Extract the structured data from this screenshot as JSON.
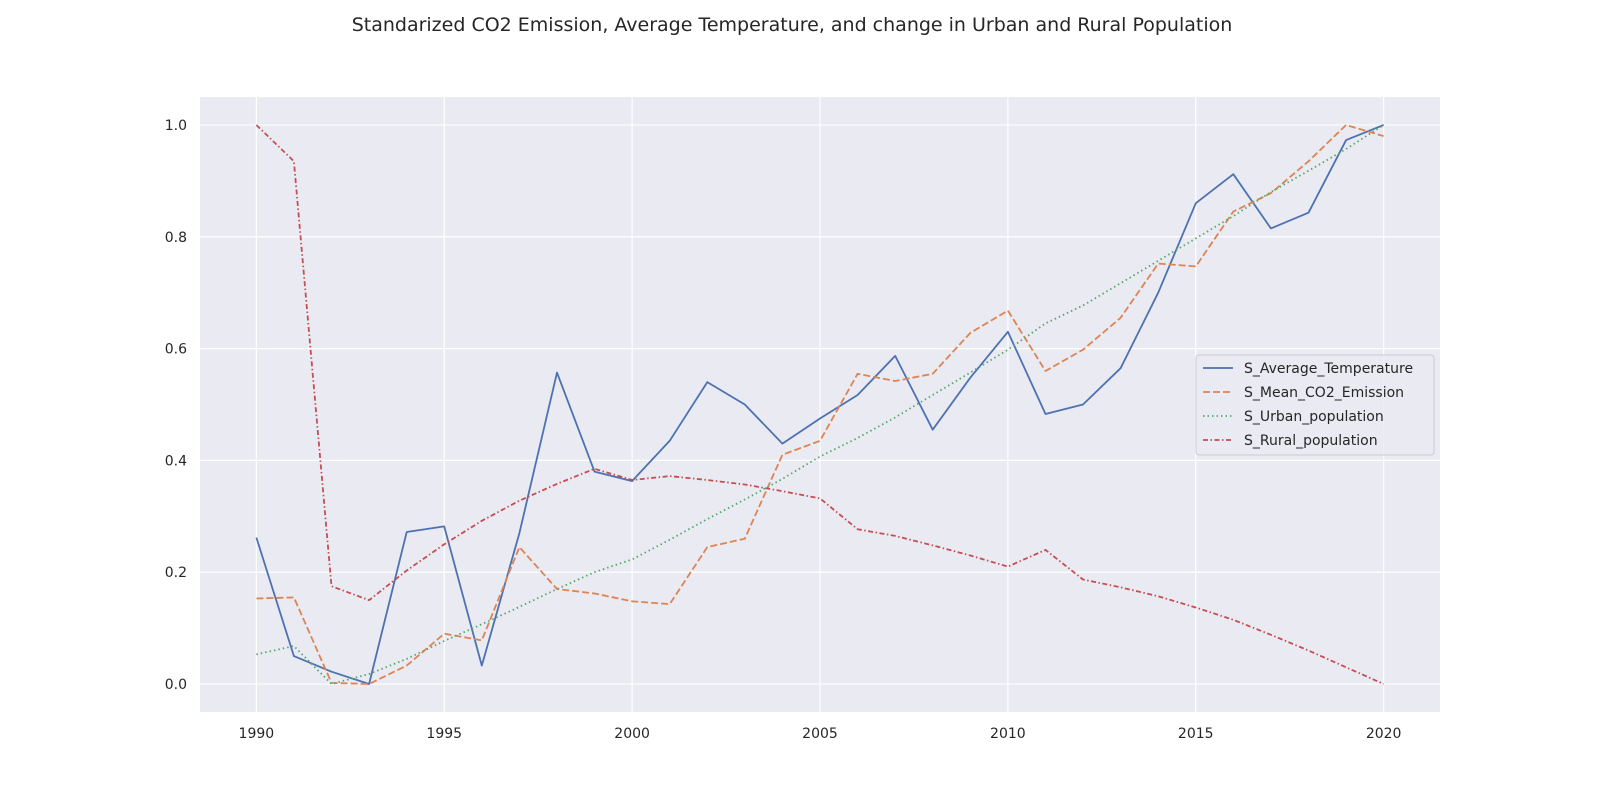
{
  "chart_data": {
    "type": "line",
    "title": "Standarized CO2 Emission, Average Temperature, and change in Urban and Rural Population",
    "xlabel": "",
    "ylabel": "",
    "xlim": [
      1988.5,
      2021.5
    ],
    "ylim": [
      -0.05,
      1.05
    ],
    "x_ticks": [
      1990,
      1995,
      2000,
      2005,
      2010,
      2015,
      2020
    ],
    "y_ticks": [
      0.0,
      0.2,
      0.4,
      0.6,
      0.8,
      1.0
    ],
    "grid": true,
    "legend_position": "center-right",
    "background_color": "#eaeaf2",
    "grid_color": "#ffffff",
    "x": [
      1990,
      1991,
      1992,
      1993,
      1994,
      1995,
      1996,
      1997,
      1998,
      1999,
      2000,
      2001,
      2002,
      2003,
      2004,
      2005,
      2006,
      2007,
      2008,
      2009,
      2010,
      2011,
      2012,
      2013,
      2014,
      2015,
      2016,
      2017,
      2018,
      2019,
      2020
    ],
    "series": [
      {
        "name": "S_Average_Temperature",
        "color": "#4c72b0",
        "dash": "solid",
        "values": [
          0.262,
          0.05,
          0.022,
          0.0,
          0.272,
          0.282,
          0.033,
          0.27,
          0.557,
          0.38,
          0.363,
          0.435,
          0.54,
          0.5,
          0.43,
          0.475,
          0.517,
          0.587,
          0.455,
          0.548,
          0.63,
          0.483,
          0.5,
          0.565,
          0.7,
          0.86,
          0.912,
          0.815,
          0.843,
          0.973,
          1.0
        ]
      },
      {
        "name": "S_Mean_CO2_Emission",
        "color": "#dd8452",
        "dash": "dashed",
        "values": [
          0.153,
          0.155,
          0.002,
          0.0,
          0.033,
          0.09,
          0.078,
          0.245,
          0.17,
          0.162,
          0.148,
          0.143,
          0.245,
          0.26,
          0.41,
          0.435,
          0.555,
          0.542,
          0.555,
          0.628,
          0.668,
          0.56,
          0.598,
          0.655,
          0.752,
          0.747,
          0.845,
          0.878,
          0.935,
          1.0,
          0.98
        ]
      },
      {
        "name": "S_Urban_population",
        "color": "#55a868",
        "dash": "dotted",
        "values": [
          0.053,
          0.068,
          0.0,
          0.018,
          0.045,
          0.077,
          0.107,
          0.138,
          0.17,
          0.2,
          0.223,
          0.258,
          0.295,
          0.33,
          0.367,
          0.407,
          0.44,
          0.477,
          0.517,
          0.557,
          0.598,
          0.645,
          0.677,
          0.717,
          0.757,
          0.797,
          0.837,
          0.88,
          0.918,
          0.957,
          1.0
        ]
      },
      {
        "name": "S_Rural_population",
        "color": "#c44e52",
        "dash": "dashdot",
        "values": [
          1.0,
          0.935,
          0.175,
          0.15,
          0.203,
          0.25,
          0.292,
          0.328,
          0.358,
          0.385,
          0.365,
          0.372,
          0.365,
          0.357,
          0.345,
          0.332,
          0.277,
          0.265,
          0.248,
          0.23,
          0.21,
          0.24,
          0.187,
          0.173,
          0.157,
          0.137,
          0.115,
          0.088,
          0.06,
          0.03,
          0.0
        ]
      }
    ]
  }
}
